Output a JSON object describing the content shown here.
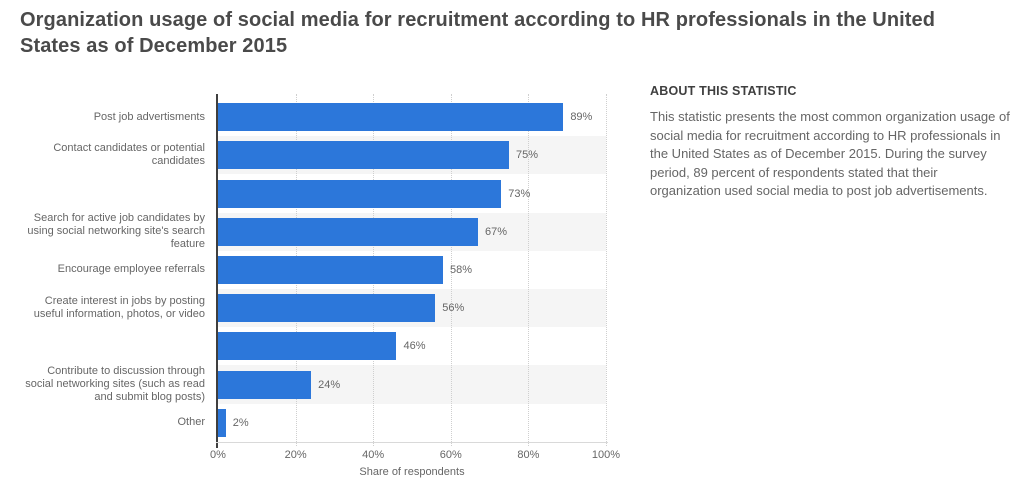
{
  "title": "Organization usage of social media for recruitment according to HR professionals in the United States as of December 2015",
  "chart_data": {
    "type": "bar",
    "orientation": "horizontal",
    "categories": [
      "Post job advertisments",
      "Contact candidates or potential candidates",
      "",
      "Search for active job candidates by using social networking site's search feature",
      "Encourage employee referrals",
      "Create interest in jobs by posting useful information, photos, or video",
      "",
      "Contribute to discussion through social networking sites (such as read and submit blog posts)",
      "Other"
    ],
    "values": [
      89,
      75,
      73,
      67,
      58,
      56,
      46,
      24,
      2
    ],
    "value_labels": [
      "89%",
      "75%",
      "73%",
      "67%",
      "58%",
      "56%",
      "46%",
      "24%",
      "2%"
    ],
    "xlabel": "Share of respondents",
    "x_ticks": [
      "0%",
      "20%",
      "40%",
      "60%",
      "80%",
      "100%"
    ],
    "x_tick_values": [
      0,
      20,
      40,
      60,
      80,
      100
    ],
    "xlim": [
      0,
      100
    ],
    "grid": "vertical-dotted",
    "legend": "none",
    "bar_color": "#2c77da",
    "stripe_color": "#f5f5f5",
    "label_color": "#666666",
    "axis_color": "#3f3f3f"
  },
  "about": {
    "heading": "ABOUT THIS STATISTIC",
    "body": "This statistic presents the most common organization usage of social media for recruitment according to HR professionals in the United States as of December 2015. During the survey period, 89 percent of respondents stated that their organization used social media to post job advertisements."
  }
}
